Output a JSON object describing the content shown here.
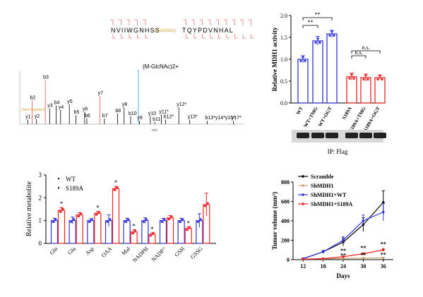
{
  "spectrum": {
    "peptide_left": "NVIIWGNHSS",
    "peptide_mod": "(O-GlcNAc)",
    "peptide_right": "TQYPDVNHAL",
    "annotation_mod": "(M-GlcNAc)2+",
    "oxonium_label": "Oxon fragment",
    "x_axis_label": "m/z",
    "peaks": [
      {
        "label": "y1",
        "mz": 0.03,
        "h": 0.08,
        "color": "#000"
      },
      {
        "label": "y2",
        "mz": 0.07,
        "h": 0.09,
        "color": "#000"
      },
      {
        "label": "b2",
        "mz": 0.05,
        "h": 0.42,
        "color": "#e05050"
      },
      {
        "label": "b3",
        "mz": 0.11,
        "h": 0.78,
        "color": "#e05050"
      },
      {
        "label": "y3",
        "mz": 0.13,
        "h": 0.28,
        "color": "#000"
      },
      {
        "label": "b4",
        "mz": 0.16,
        "h": 0.33,
        "color": "#000"
      },
      {
        "label": "y4",
        "mz": 0.18,
        "h": 0.25,
        "color": "#000"
      },
      {
        "label": "y5",
        "mz": 0.22,
        "h": 0.35,
        "color": "#000"
      },
      {
        "label": "b5",
        "mz": 0.25,
        "h": 0.16,
        "color": "#000"
      },
      {
        "label": "y6",
        "mz": 0.29,
        "h": 0.22,
        "color": "#000"
      },
      {
        "label": "b6",
        "mz": 0.3,
        "h": 0.1,
        "color": "#000"
      },
      {
        "label": "y7",
        "mz": 0.36,
        "h": 0.5,
        "color": "#e05050"
      },
      {
        "label": "b7",
        "mz": 0.38,
        "h": 0.1,
        "color": "#000"
      },
      {
        "label": "b8",
        "mz": 0.44,
        "h": 0.19,
        "color": "#000"
      },
      {
        "label": "y8",
        "mz": 0.47,
        "h": 0.3,
        "color": "#000"
      },
      {
        "label": "b10",
        "mz": 0.5,
        "h": 0.14,
        "color": "#000"
      },
      {
        "label": "y9",
        "mz": 0.54,
        "h": 0.06,
        "color": "#000"
      },
      {
        "label": "y10",
        "mz": 0.59,
        "h": 0.14,
        "color": "#000"
      },
      {
        "label": "b11",
        "mz": 0.61,
        "h": 0.04,
        "color": "#000"
      },
      {
        "label": "y11*",
        "mz": 0.64,
        "h": 0.17,
        "color": "#000"
      },
      {
        "label": "b12*",
        "mz": 0.66,
        "h": 0.08,
        "color": "#000"
      },
      {
        "label": "y12*",
        "mz": 0.72,
        "h": 0.3,
        "color": "#000"
      },
      {
        "label": "y13*",
        "mz": 0.77,
        "h": 0.08,
        "color": "#000"
      },
      {
        "label": "b13*y14*y15*",
        "mz": 0.85,
        "h": 0.06,
        "color": "#000"
      },
      {
        "label": "y17*",
        "mz": 0.97,
        "h": 0.06,
        "color": "#000"
      }
    ]
  },
  "chart_data": [
    {
      "id": "mdh1_activity",
      "type": "bar",
      "ylabel": "Relative MDH1 activity",
      "ylim": [
        0,
        2.0
      ],
      "yticks": [
        "0.0",
        "0.5",
        "1.0",
        "1.5",
        "2.0"
      ],
      "categories": [
        "WT",
        "WT+TMG",
        "WT+OGT",
        "S189A",
        "S189A+TMG",
        "S189A+OGT"
      ],
      "values": [
        1.0,
        1.42,
        1.58,
        0.6,
        0.58,
        0.58
      ],
      "errors": [
        0.08,
        0.1,
        0.08,
        0.08,
        0.08,
        0.05
      ],
      "colors": [
        "#3333dd",
        "#3333dd",
        "#3333dd",
        "#ee2222",
        "#ee2222",
        "#ee2222"
      ],
      "significance": [
        {
          "from": 0,
          "to": 1,
          "label": "**"
        },
        {
          "from": 0,
          "to": 2,
          "label": "**"
        },
        {
          "from": 3,
          "to": 4,
          "label": "n.s."
        },
        {
          "from": 3,
          "to": 5,
          "label": "n.s."
        }
      ],
      "blot_caption": "IP: Flag"
    },
    {
      "id": "relative_metabolite",
      "type": "bar",
      "ylabel": "Relative metabolite",
      "ylim": [
        0,
        3
      ],
      "yticks": [
        "0",
        "1",
        "2",
        "3"
      ],
      "categories": [
        "Gln",
        "Glu",
        "Asp",
        "OAA",
        "Mal",
        "NADPH",
        "NADP⁺",
        "GSH",
        "GSSG"
      ],
      "series": [
        {
          "name": "WT",
          "color": "#3333dd",
          "values": [
            1.0,
            1.0,
            1.0,
            1.0,
            1.0,
            1.0,
            1.0,
            1.0,
            1.0
          ],
          "errors": [
            0.1,
            0.15,
            0.08,
            0.25,
            0.1,
            0.12,
            0.1,
            0.1,
            0.3
          ]
        },
        {
          "name": "S189A",
          "color": "#ee2222",
          "values": [
            1.45,
            1.25,
            1.32,
            2.4,
            0.5,
            0.4,
            1.12,
            0.65,
            1.7
          ],
          "errors": [
            0.12,
            0.1,
            0.08,
            0.1,
            0.1,
            0.06,
            0.1,
            0.08,
            0.5
          ]
        }
      ],
      "stars": [
        0,
        2,
        3,
        4,
        5,
        7
      ],
      "star_label": "*"
    },
    {
      "id": "tumor_volume",
      "type": "line",
      "xlabel": "Days",
      "ylabel": "Tumor volume (mm³)",
      "x": [
        12,
        18,
        24,
        30,
        36
      ],
      "xticks": [
        "12",
        "18",
        "24",
        "30",
        "36"
      ],
      "ylim": [
        0,
        800
      ],
      "yticks": [
        "0",
        "200",
        "400",
        "600",
        "800"
      ],
      "series": [
        {
          "name": "Scramble",
          "color": "#000000",
          "values": [
            10,
            80,
            180,
            360,
            590
          ],
          "errors": [
            5,
            15,
            40,
            70,
            120
          ]
        },
        {
          "name": "ShMDH1",
          "color": "#c8a870",
          "values": [
            5,
            8,
            12,
            15,
            18
          ],
          "errors": [
            2,
            3,
            4,
            5,
            5
          ]
        },
        {
          "name": "ShMDH1+WT",
          "color": "#3333dd",
          "values": [
            10,
            80,
            200,
            400,
            490
          ],
          "errors": [
            5,
            15,
            35,
            60,
            90
          ]
        },
        {
          "name": "ShMDH1+S189A",
          "color": "#ee2222",
          "values": [
            5,
            10,
            30,
            60,
            100
          ],
          "errors": [
            2,
            3,
            6,
            10,
            15
          ]
        }
      ],
      "significance_label": "**"
    }
  ]
}
